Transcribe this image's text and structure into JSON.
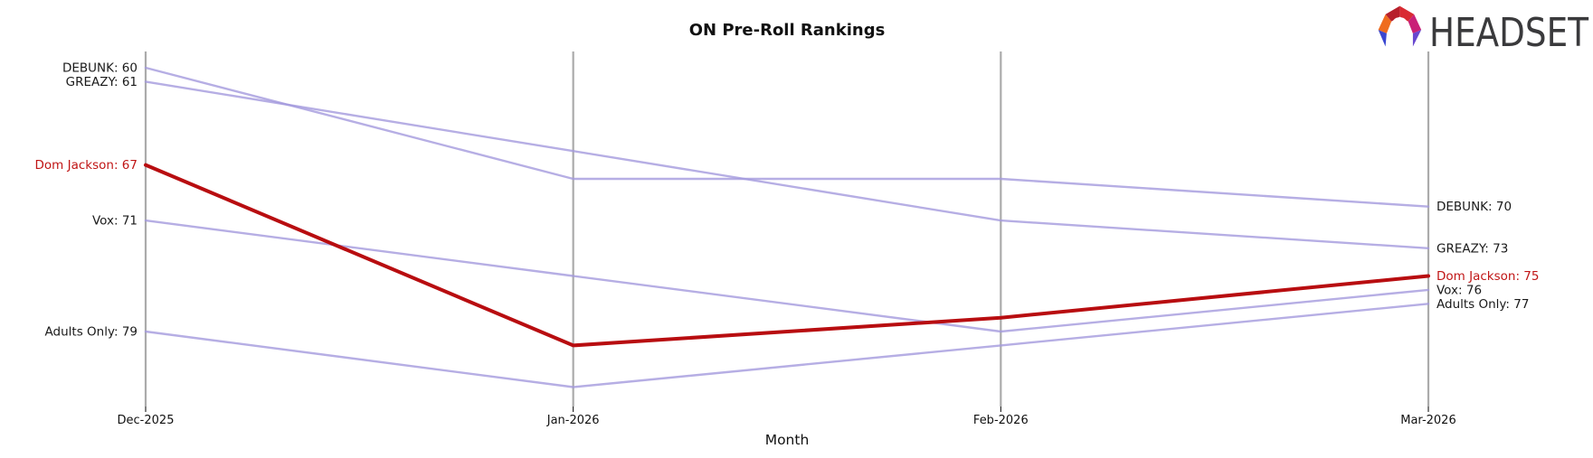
{
  "logo": {
    "text": "HEADSET"
  },
  "chart_data": {
    "type": "line",
    "title": "ON Pre-Roll Rankings",
    "xlabel": "Month",
    "categories": [
      "Dec-2025",
      "Jan-2026",
      "Feb-2026",
      "Mar-2026"
    ],
    "y_axis": {
      "inverted": true,
      "tick_labels_visible": false,
      "range_shown": [
        60,
        83
      ]
    },
    "series": [
      {
        "name": "DEBUNK",
        "values": [
          60,
          68,
          68,
          70
        ],
        "start_label": "DEBUNK: 60",
        "end_label": "DEBUNK: 70",
        "color": "#a49add",
        "highlight": false
      },
      {
        "name": "GREAZY",
        "values": [
          61,
          66,
          71,
          73
        ],
        "start_label": "GREAZY: 61",
        "end_label": "GREAZY: 73",
        "color": "#a49add",
        "highlight": false
      },
      {
        "name": "Dom Jackson",
        "values": [
          67,
          80,
          78,
          75
        ],
        "start_label": "Dom Jackson: 67",
        "end_label": "Dom Jackson: 75",
        "color": "#b80d10",
        "highlight": true
      },
      {
        "name": "Vox",
        "values": [
          71,
          75,
          79,
          76
        ],
        "start_label": "Vox: 71",
        "end_label": "Vox: 76",
        "color": "#a49add",
        "highlight": false
      },
      {
        "name": "Adults Only",
        "values": [
          79,
          83,
          80,
          77
        ],
        "start_label": "Adults Only: 79",
        "end_label": "Adults Only: 77",
        "color": "#a49add",
        "highlight": false
      }
    ],
    "colors": {
      "line_default": "#a49add",
      "line_highlight": "#b80d10",
      "label_default": "#1a1a1a",
      "label_highlight": "#c01515",
      "axis": "#ababab",
      "tick": "#000000"
    },
    "legend": "none",
    "grid": "vertical-category-axes-only"
  }
}
